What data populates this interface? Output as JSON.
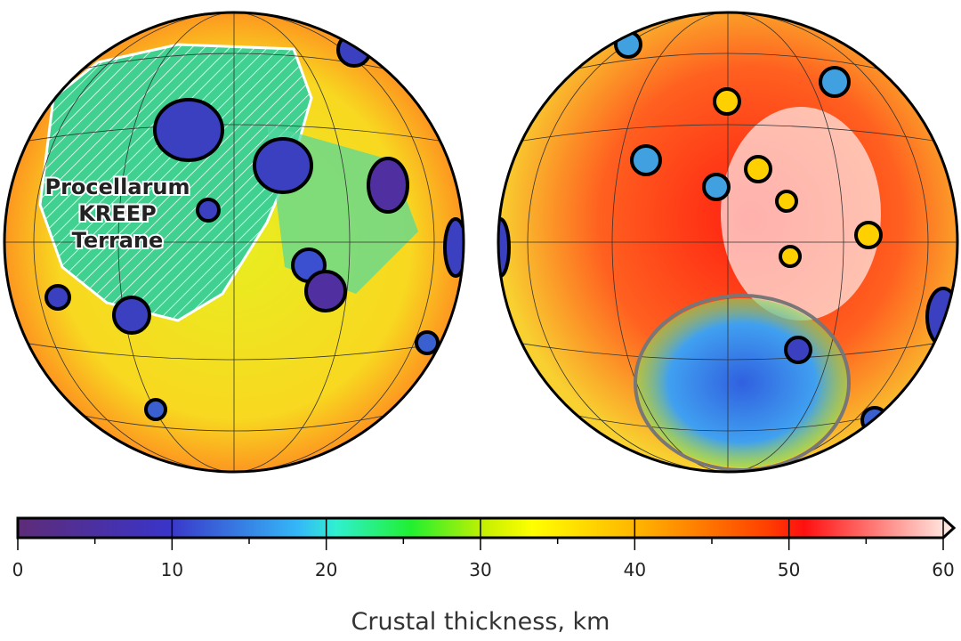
{
  "left_map": {
    "label_lines": [
      "Procellarum",
      "KREEP",
      "Terrane"
    ]
  },
  "colorbar": {
    "title": "Crustal thickness, km",
    "ticks": [
      "0",
      "10",
      "20",
      "30",
      "40",
      "50",
      "60"
    ],
    "range": [
      0,
      60
    ],
    "extend": "max",
    "colors": [
      "#5a2a7a",
      "#3a3ad0",
      "#30c8ff",
      "#30ff90",
      "#ffff00",
      "#ff9000",
      "#ff0000",
      "#ffffff"
    ]
  }
}
